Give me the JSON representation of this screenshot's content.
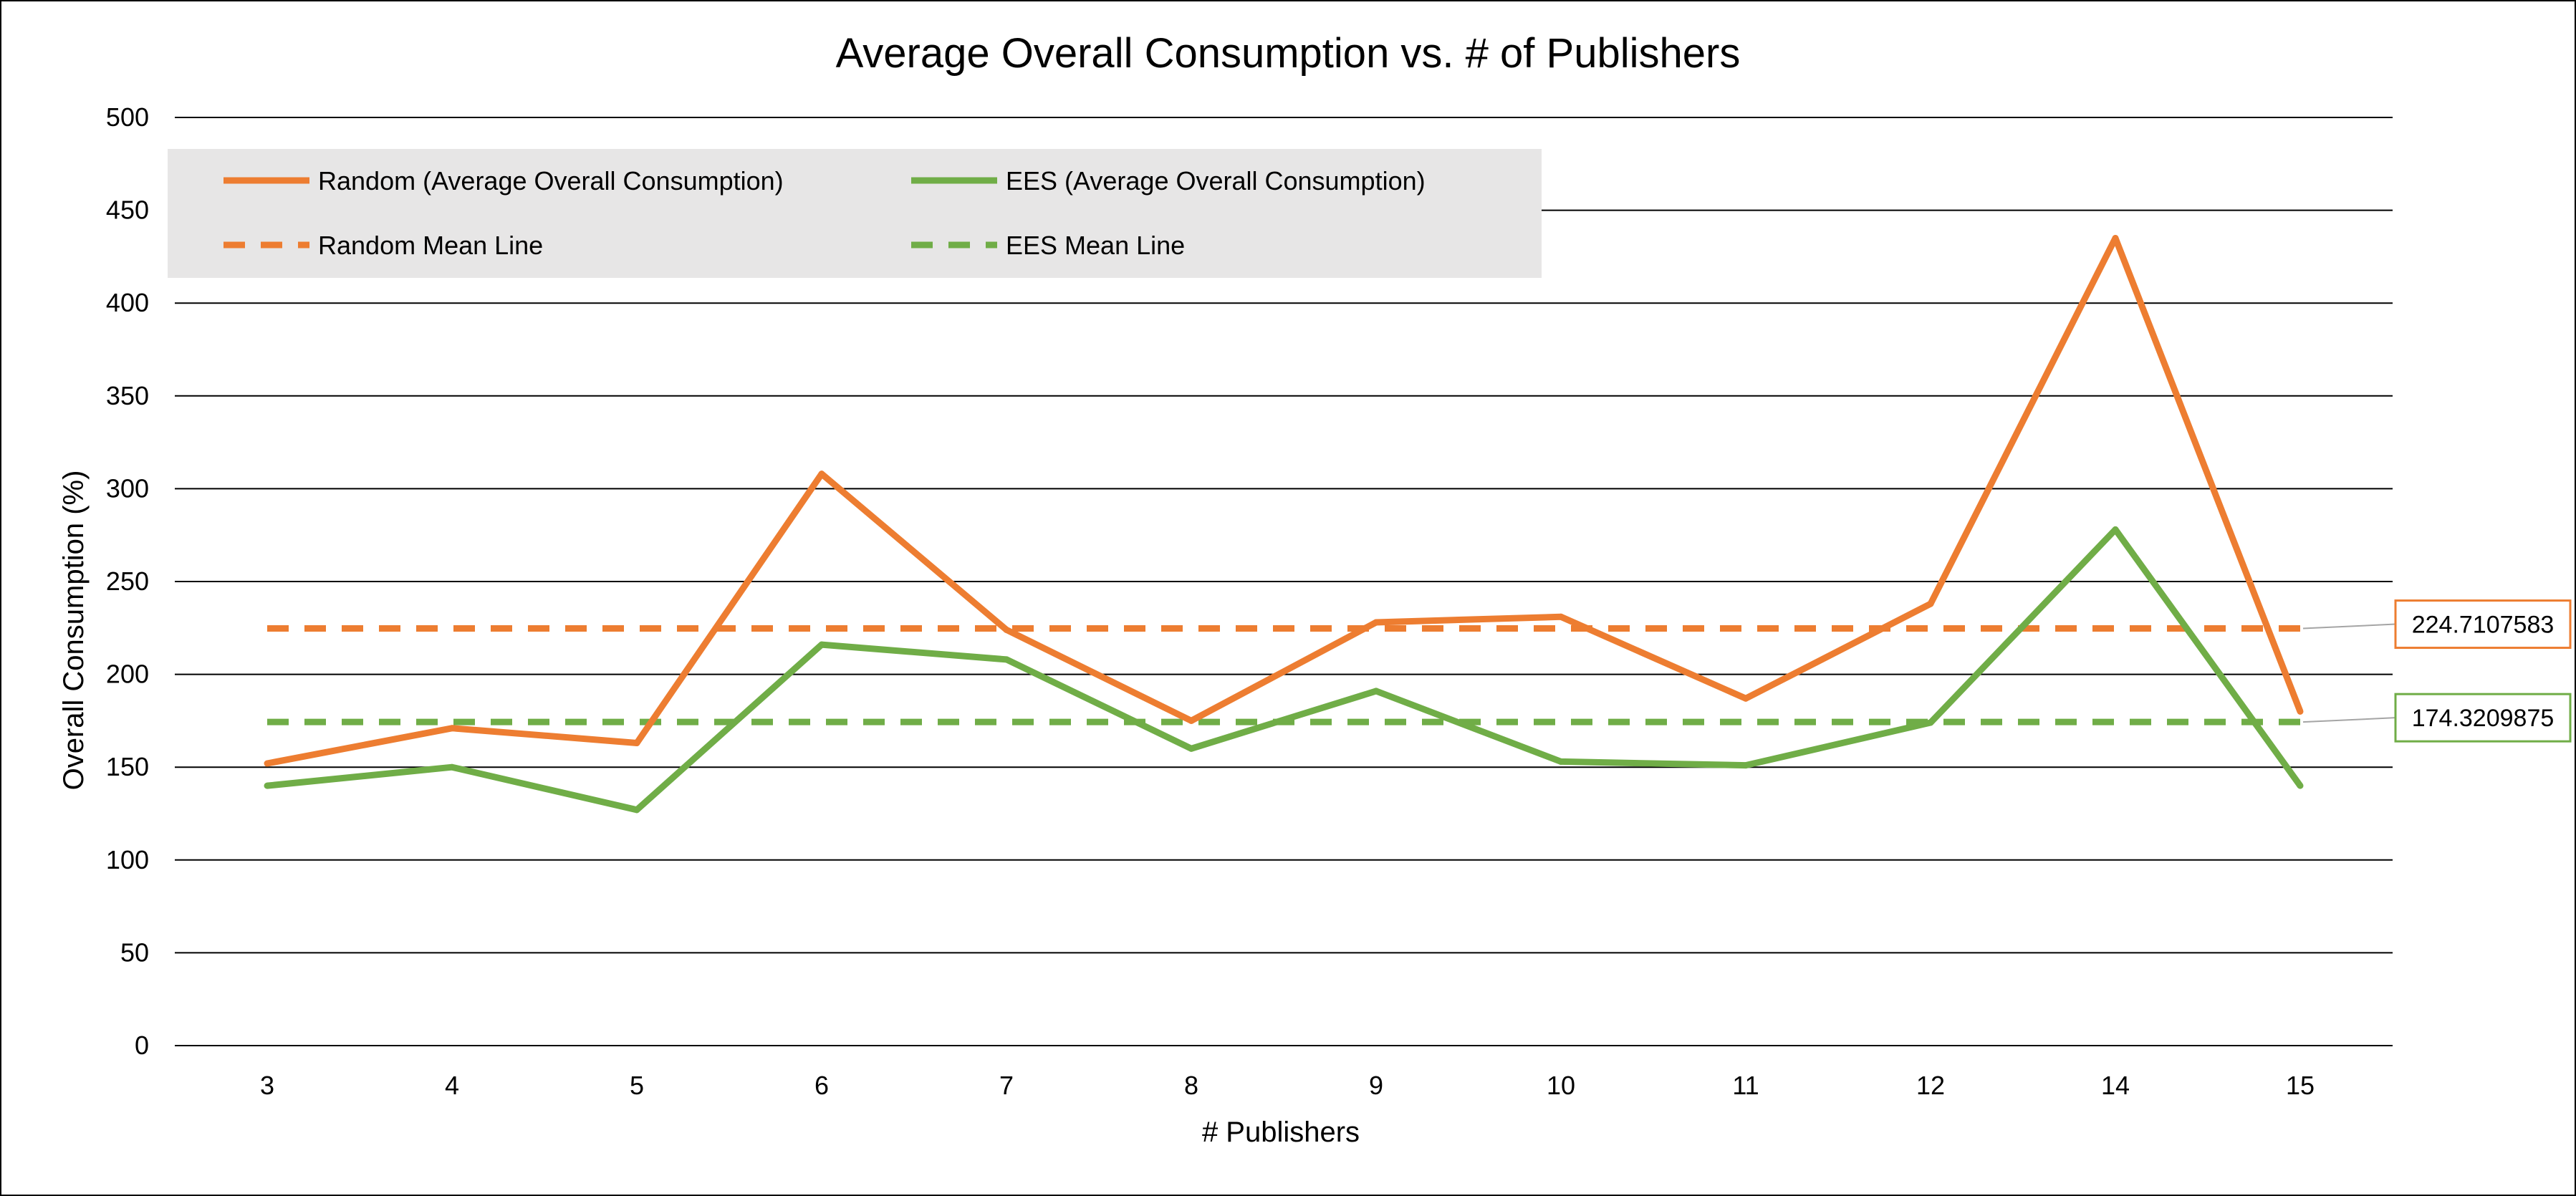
{
  "chart_data": {
    "type": "line",
    "title": "Average Overall Consumption vs. # of Publishers",
    "xlabel": "# Publishers",
    "ylabel": "Overall Consumption (%)",
    "ylim": [
      0,
      500
    ],
    "yticks": [
      0,
      50,
      100,
      150,
      200,
      250,
      300,
      350,
      400,
      450,
      500
    ],
    "grid": "horizontal",
    "legend_position": "top-left",
    "categories": [
      "3",
      "4",
      "5",
      "6",
      "7",
      "8",
      "9",
      "10",
      "11",
      "12",
      "14",
      "15"
    ],
    "series": [
      {
        "name": "Random (Average Overall Consumption)",
        "style": "solid",
        "color": "#ED7D31",
        "values": [
          152,
          171,
          163,
          308,
          224,
          175,
          228,
          231,
          187,
          238,
          435,
          180
        ]
      },
      {
        "name": "EES (Average Overall Consumption)",
        "style": "solid",
        "color": "#70AD47",
        "values": [
          140,
          150,
          127,
          216,
          208,
          160,
          191,
          153,
          151,
          174,
          278,
          140
        ]
      },
      {
        "name": "Random Mean Line",
        "style": "dashed",
        "color": "#ED7D31",
        "value": 224.7107583,
        "label": "224.7107583"
      },
      {
        "name": "EES Mean Line",
        "style": "dashed",
        "color": "#70AD47",
        "value": 174.3209875,
        "label": "174.3209875"
      }
    ]
  }
}
